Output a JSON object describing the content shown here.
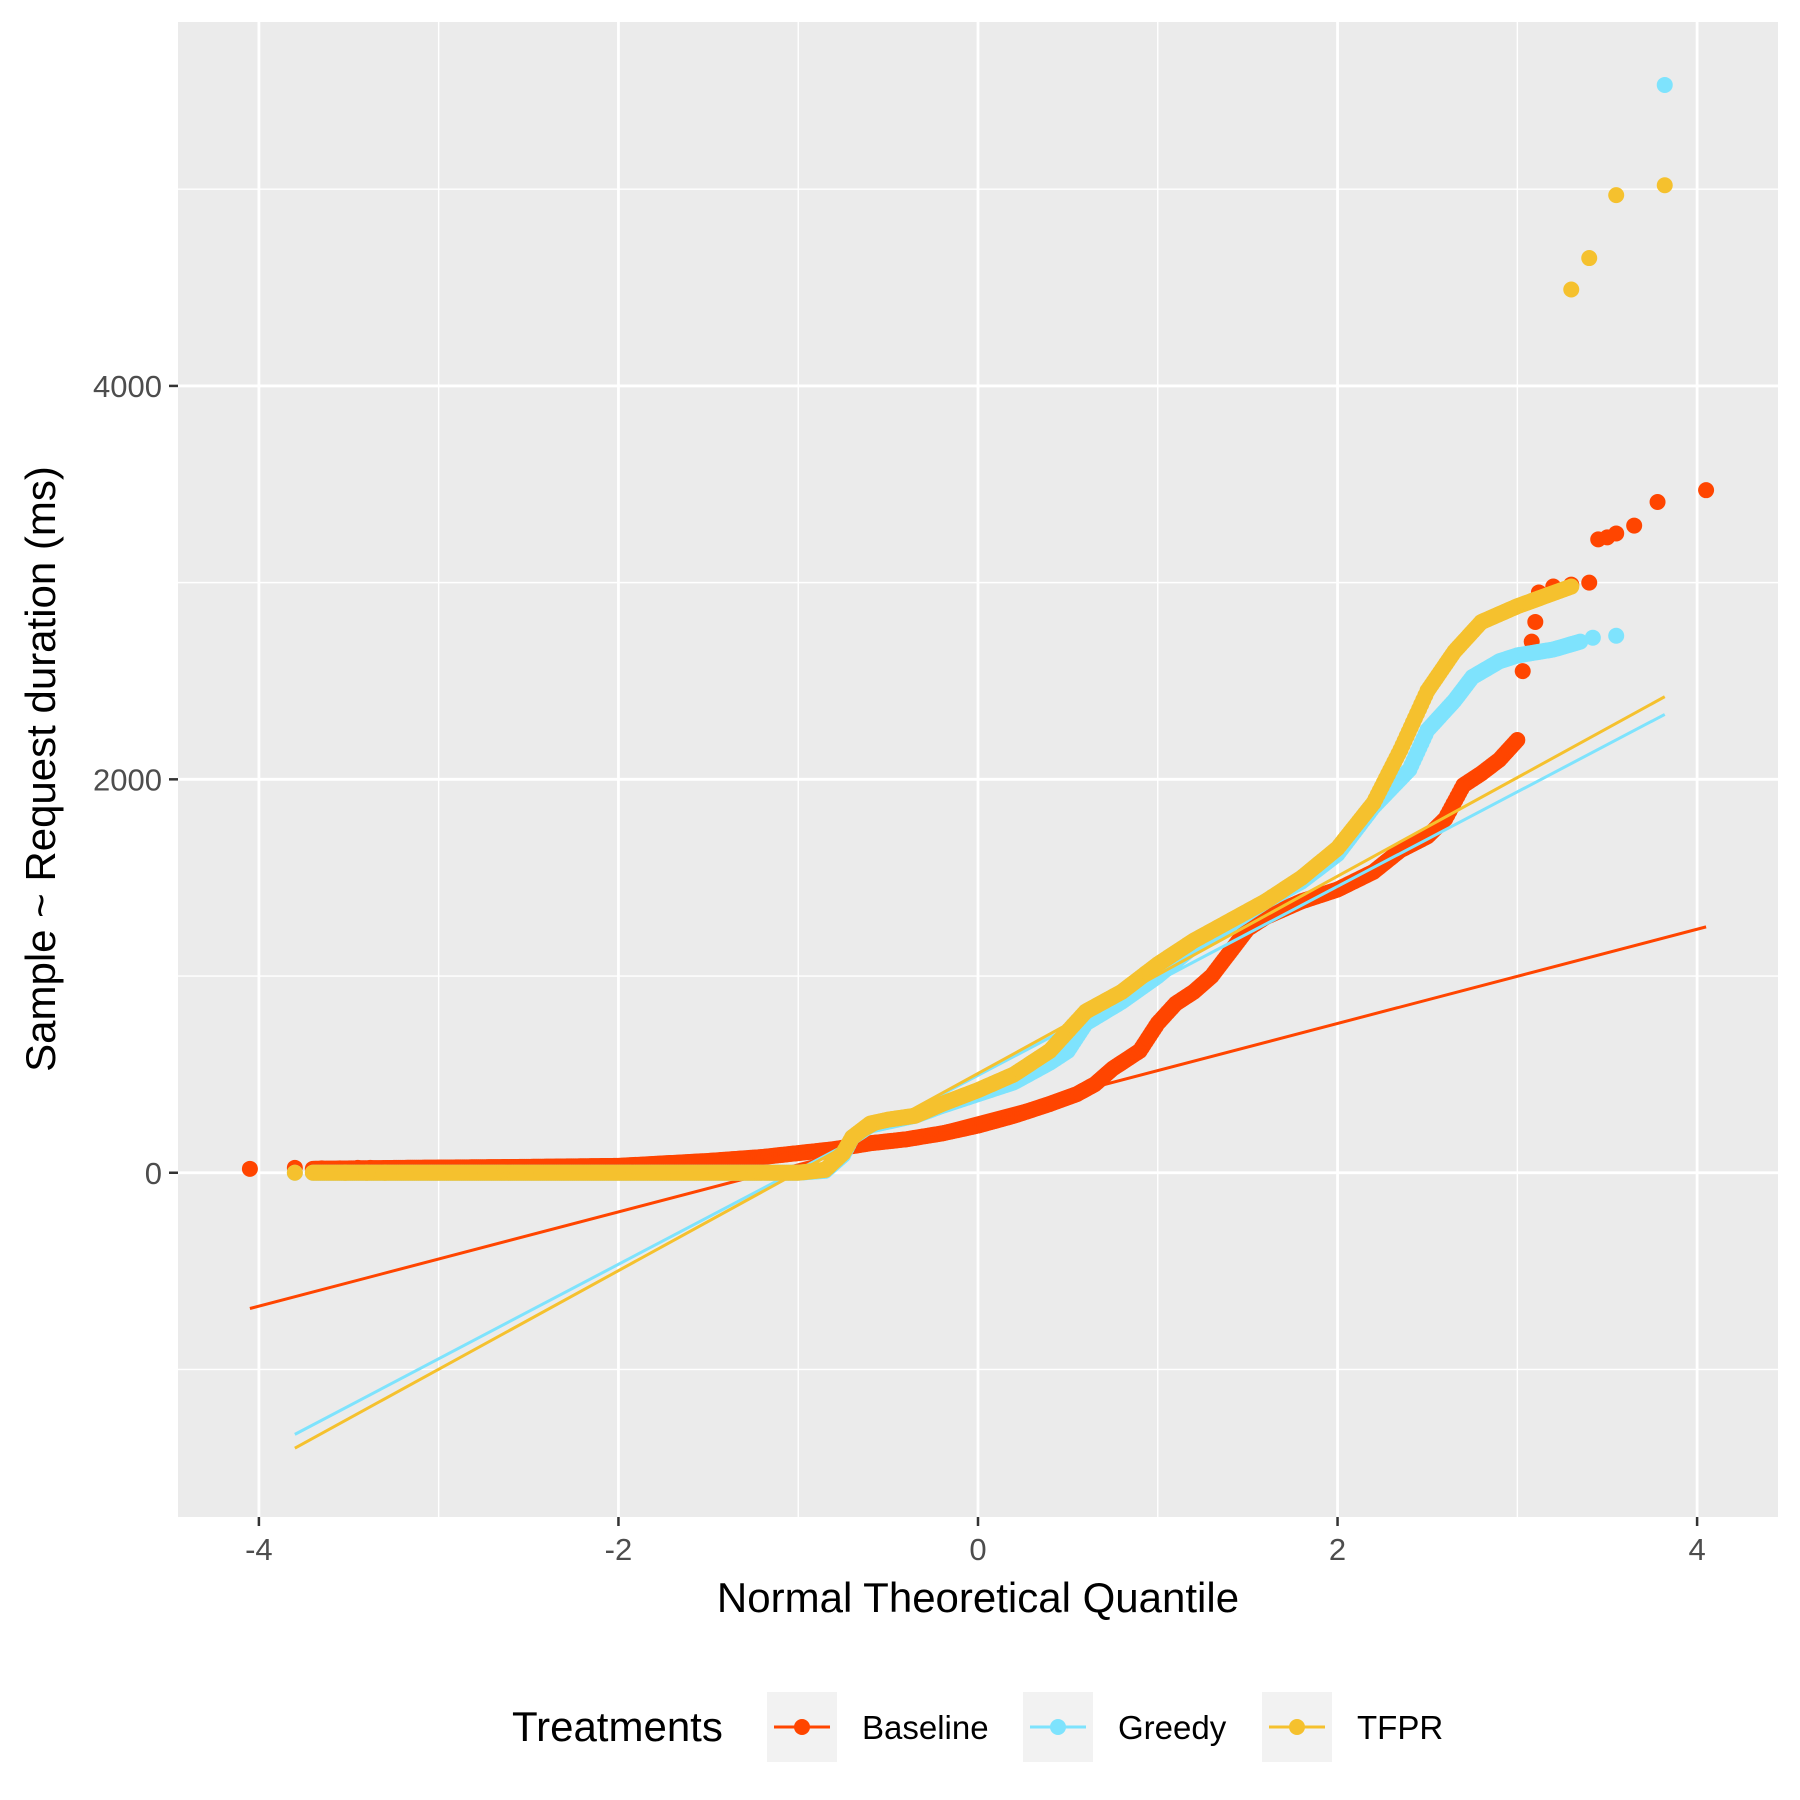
{
  "chart_data": {
    "type": "scatter",
    "subtype": "qq-plot",
    "title": "",
    "xlabel": "Normal Theoretical Quantile",
    "ylabel": "Sample ~ Request duration (ms)",
    "xlim": [
      -4.45,
      4.45
    ],
    "ylim": [
      -1750,
      5850
    ],
    "x_ticks": [
      -4,
      -2,
      0,
      2,
      4
    ],
    "x_tick_labels": [
      "-4",
      "-2",
      "0",
      "2",
      "4"
    ],
    "y_ticks": [
      0,
      2000,
      4000
    ],
    "y_tick_labels": [
      "0",
      "2000",
      "4000"
    ],
    "x_minor_gridlines": [
      -3,
      -1,
      1,
      3
    ],
    "y_minor_gridlines": [
      -1000,
      1000,
      3000,
      5000
    ],
    "grid": true,
    "background": "#ebebeb",
    "legend": {
      "title": "Treatments",
      "position": "bottom",
      "entries": [
        "Baseline",
        "Greedy",
        "TFPR"
      ]
    },
    "series": [
      {
        "name": "Baseline",
        "color": "#ff4500",
        "reference_line": {
          "from": [
            -4.05,
            -690
          ],
          "to": [
            4.05,
            1250
          ]
        },
        "curve": [
          [
            -3.7,
            20
          ],
          [
            -3.2,
            25
          ],
          [
            -2.5,
            30
          ],
          [
            -2.0,
            35
          ],
          [
            -1.5,
            60
          ],
          [
            -1.2,
            80
          ],
          [
            -1.0,
            100
          ],
          [
            -0.8,
            120
          ],
          [
            -0.6,
            150
          ],
          [
            -0.4,
            170
          ],
          [
            -0.2,
            200
          ],
          [
            0.0,
            240
          ],
          [
            0.2,
            290
          ],
          [
            0.4,
            350
          ],
          [
            0.55,
            400
          ],
          [
            0.65,
            450
          ],
          [
            0.75,
            530
          ],
          [
            0.9,
            620
          ],
          [
            1.0,
            760
          ],
          [
            1.1,
            860
          ],
          [
            1.2,
            920
          ],
          [
            1.3,
            1000
          ],
          [
            1.4,
            1120
          ],
          [
            1.5,
            1240
          ],
          [
            1.6,
            1300
          ],
          [
            1.8,
            1380
          ],
          [
            2.0,
            1440
          ],
          [
            2.2,
            1530
          ],
          [
            2.35,
            1640
          ],
          [
            2.5,
            1710
          ],
          [
            2.6,
            1800
          ],
          [
            2.7,
            1970
          ],
          [
            2.8,
            2030
          ],
          [
            2.9,
            2100
          ],
          [
            3.0,
            2200
          ]
        ],
        "outliers": [
          [
            -4.05,
            20
          ],
          [
            -3.8,
            25
          ],
          [
            -3.65,
            22
          ],
          [
            -3.55,
            22
          ],
          [
            -3.45,
            25
          ],
          [
            -3.38,
            25
          ],
          [
            3.03,
            2550
          ],
          [
            3.08,
            2700
          ],
          [
            3.1,
            2800
          ],
          [
            3.12,
            2950
          ],
          [
            3.2,
            2980
          ],
          [
            3.3,
            2990
          ],
          [
            3.4,
            3000
          ],
          [
            3.45,
            3220
          ],
          [
            3.5,
            3230
          ],
          [
            3.55,
            3250
          ],
          [
            3.65,
            3290
          ],
          [
            3.78,
            3410
          ],
          [
            4.05,
            3470
          ]
        ]
      },
      {
        "name": "Greedy",
        "color": "#7ee3fd",
        "reference_line": {
          "from": [
            -3.8,
            -1330
          ],
          "to": [
            3.82,
            2330
          ]
        },
        "curve": [
          [
            -3.7,
            0
          ],
          [
            -3.2,
            0
          ],
          [
            -2.5,
            0
          ],
          [
            -2.0,
            0
          ],
          [
            -1.5,
            0
          ],
          [
            -1.0,
            0
          ],
          [
            -0.85,
            10
          ],
          [
            -0.75,
            90
          ],
          [
            -0.7,
            180
          ],
          [
            -0.6,
            240
          ],
          [
            -0.5,
            260
          ],
          [
            -0.35,
            290
          ],
          [
            -0.2,
            340
          ],
          [
            0.0,
            400
          ],
          [
            0.2,
            460
          ],
          [
            0.4,
            560
          ],
          [
            0.5,
            620
          ],
          [
            0.6,
            760
          ],
          [
            0.8,
            870
          ],
          [
            1.0,
            1000
          ],
          [
            1.2,
            1150
          ],
          [
            1.4,
            1260
          ],
          [
            1.6,
            1380
          ],
          [
            1.8,
            1480
          ],
          [
            2.0,
            1620
          ],
          [
            2.2,
            1860
          ],
          [
            2.4,
            2050
          ],
          [
            2.5,
            2250
          ],
          [
            2.65,
            2400
          ],
          [
            2.75,
            2520
          ],
          [
            2.9,
            2600
          ],
          [
            3.0,
            2630
          ],
          [
            3.2,
            2660
          ],
          [
            3.35,
            2700
          ]
        ],
        "outliers": [
          [
            -3.8,
            0
          ],
          [
            -3.52,
            0
          ],
          [
            -3.4,
            0
          ],
          [
            -3.3,
            0
          ],
          [
            3.42,
            2720
          ],
          [
            3.55,
            2730
          ],
          [
            3.82,
            5530
          ]
        ]
      },
      {
        "name": "TFPR",
        "color": "#f5c12e",
        "reference_line": {
          "from": [
            -3.8,
            -1400
          ],
          "to": [
            3.82,
            2420
          ]
        },
        "curve": [
          [
            -3.7,
            0
          ],
          [
            -3.2,
            0
          ],
          [
            -2.5,
            0
          ],
          [
            -2.0,
            0
          ],
          [
            -1.5,
            0
          ],
          [
            -1.0,
            0
          ],
          [
            -0.85,
            15
          ],
          [
            -0.75,
            100
          ],
          [
            -0.7,
            180
          ],
          [
            -0.6,
            250
          ],
          [
            -0.5,
            270
          ],
          [
            -0.35,
            290
          ],
          [
            -0.2,
            350
          ],
          [
            0.0,
            420
          ],
          [
            0.2,
            500
          ],
          [
            0.4,
            620
          ],
          [
            0.6,
            820
          ],
          [
            0.8,
            920
          ],
          [
            1.0,
            1060
          ],
          [
            1.2,
            1180
          ],
          [
            1.4,
            1280
          ],
          [
            1.6,
            1380
          ],
          [
            1.8,
            1500
          ],
          [
            2.0,
            1650
          ],
          [
            2.2,
            1880
          ],
          [
            2.35,
            2150
          ],
          [
            2.5,
            2450
          ],
          [
            2.65,
            2650
          ],
          [
            2.8,
            2800
          ],
          [
            3.0,
            2880
          ],
          [
            3.15,
            2930
          ],
          [
            3.3,
            2980
          ]
        ],
        "outliers": [
          [
            -3.8,
            0
          ],
          [
            -3.52,
            0
          ],
          [
            -3.4,
            0
          ],
          [
            -3.3,
            0
          ],
          [
            3.3,
            4490
          ],
          [
            3.4,
            4650
          ],
          [
            3.55,
            4970
          ],
          [
            3.82,
            5020
          ]
        ]
      }
    ]
  }
}
